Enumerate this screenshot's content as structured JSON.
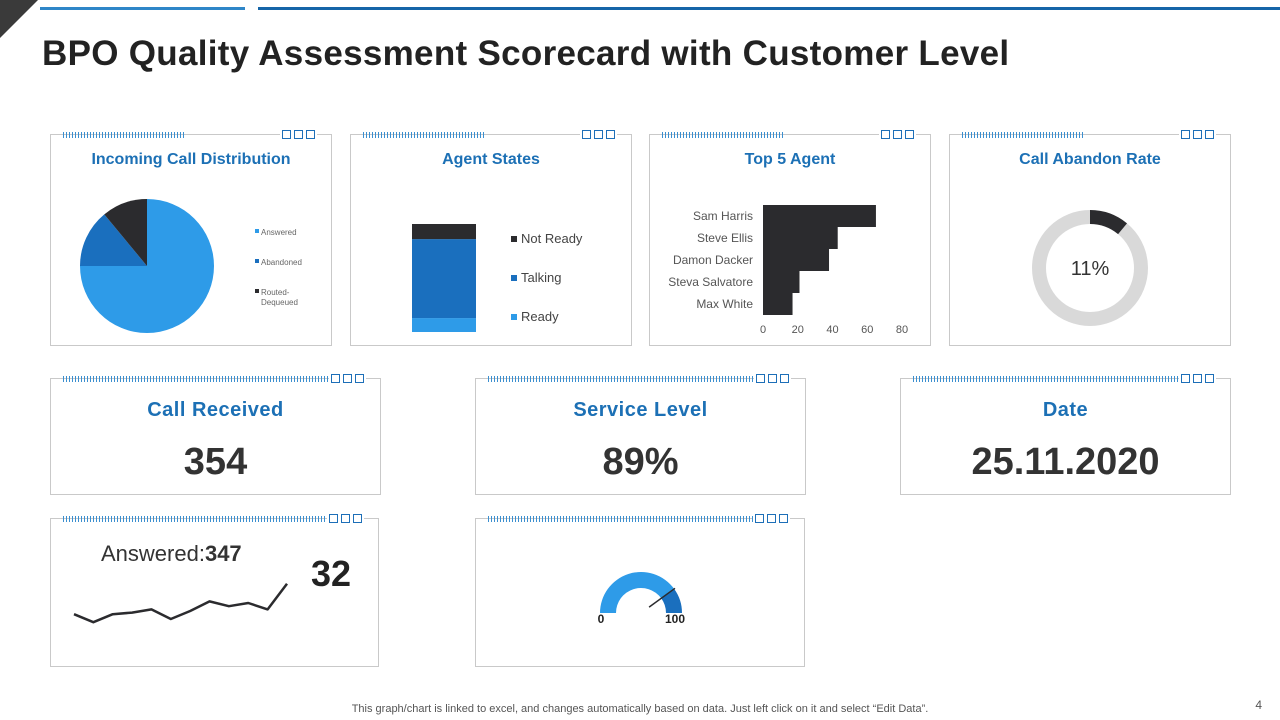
{
  "title": "BPO Quality Assessment Scorecard with Customer Level",
  "footnote": "This graph/chart is linked to excel,  and changes automatically based on data. Just left click on it and select “Edit Data”.",
  "page_number": "4",
  "colors": {
    "accent_blue": "#1c70b5",
    "light_blue": "#2e9be8",
    "mid_blue": "#1a6fbe",
    "dark": "#2b2b2e",
    "grey_ring": "#d9d9d9"
  },
  "cards": {
    "incoming": {
      "title": "Incoming Call Distribution"
    },
    "agent_states": {
      "title": "Agent States"
    },
    "top5": {
      "title": "Top 5 Agent"
    },
    "abandon": {
      "title": "Call Abandon Rate"
    },
    "call_received": {
      "title": "Call Received",
      "value": "354"
    },
    "service_level": {
      "title": "Service Level",
      "value": "89%"
    },
    "date": {
      "title": "Date",
      "value": "25.11.2020"
    },
    "answered": {
      "label": "Answered:",
      "value": "347",
      "side_value": "32"
    },
    "gauge": {
      "min_label": "0",
      "max_label": "100"
    }
  },
  "chart_data": [
    {
      "type": "pie",
      "title": "Incoming Call Distribution",
      "categories": [
        "Answered",
        "Abandoned",
        "Routed-Dequeued"
      ],
      "values": [
        75,
        14,
        11
      ],
      "colors": [
        "#2e9be8",
        "#1a6fbe",
        "#2b2b2e"
      ],
      "legend_labels": [
        "Answered",
        "Abandoned",
        "Routed-",
        "Dequeued"
      ],
      "legend": "right"
    },
    {
      "type": "bar",
      "stacked": true,
      "title": "Agent States",
      "series": [
        {
          "name": "Ready",
          "value": 12,
          "color": "#2e9be8"
        },
        {
          "name": "Talking",
          "value": 68,
          "color": "#1a6fbe"
        },
        {
          "name": "Not Ready",
          "value": 13,
          "color": "#2b2b2e"
        }
      ],
      "legend_order": [
        "Not Ready",
        "Talking",
        "Ready"
      ],
      "legend": "right"
    },
    {
      "type": "bar",
      "orientation": "horizontal",
      "title": "Top 5 Agent",
      "categories": [
        "Sam Harris",
        "Steve Ellis",
        "Damon Dacker",
        "Steva Salvatore",
        "Max White"
      ],
      "values": [
        65,
        43,
        38,
        21,
        17
      ],
      "xticks": [
        "0",
        "20",
        "40",
        "60",
        "80"
      ],
      "xlim": [
        0,
        80
      ],
      "color": "#2b2b2e"
    },
    {
      "type": "pie",
      "donut": true,
      "title": "Call Abandon Rate",
      "values": [
        11,
        89
      ],
      "categories": [
        "Abandoned",
        "Other"
      ],
      "colors": [
        "#2b2b2e",
        "#d9d9d9"
      ],
      "center_label": "11%"
    },
    {
      "type": "line",
      "title": "Answered",
      "values": [
        18,
        13,
        18,
        19,
        21,
        15,
        20,
        26,
        23,
        25,
        21,
        37
      ],
      "ylim": [
        0,
        40
      ],
      "color": "#2b2b2e"
    },
    {
      "type": "gauge",
      "value": 80,
      "range": [
        0,
        100
      ],
      "colors": [
        "#2e9be8",
        "#1a6fbe"
      ],
      "needle_color": "#2b2b2e"
    }
  ]
}
